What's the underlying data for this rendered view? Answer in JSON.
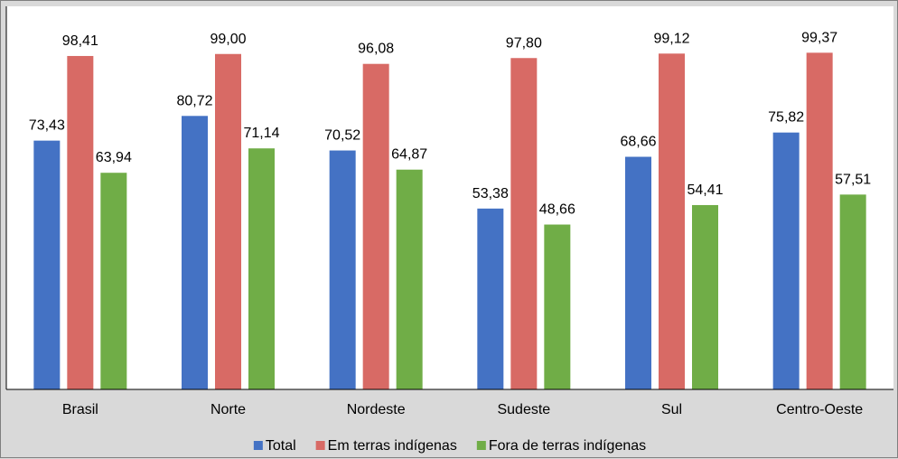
{
  "chart_data": {
    "type": "bar",
    "title": "",
    "xlabel": "",
    "ylabel": "",
    "ylim": [
      0,
      100
    ],
    "grid": false,
    "legend_position": "bottom",
    "categories": [
      "Brasil",
      "Norte",
      "Nordeste",
      "Sudeste",
      "Sul",
      "Centro-Oeste"
    ],
    "series": [
      {
        "name": "Total",
        "color": "#4472c4",
        "values": [
          73.43,
          80.72,
          70.52,
          53.38,
          68.66,
          75.82
        ],
        "labels": [
          "73,43",
          "80,72",
          "70,52",
          "53,38",
          "68,66",
          "75,82"
        ]
      },
      {
        "name": "Em terras indígenas",
        "color": "#d86a65",
        "values": [
          98.41,
          99.0,
          96.08,
          97.8,
          99.12,
          99.37
        ],
        "labels": [
          "98,41",
          "99,00",
          "96,08",
          "97,80",
          "99,12",
          "99,37"
        ]
      },
      {
        "name": "Fora de terras indígenas",
        "color": "#70ad47",
        "values": [
          63.94,
          71.14,
          64.87,
          48.66,
          54.41,
          57.51
        ],
        "labels": [
          "63,94",
          "71,14",
          "64,87",
          "48,66",
          "54,41",
          "57,51"
        ]
      }
    ]
  }
}
